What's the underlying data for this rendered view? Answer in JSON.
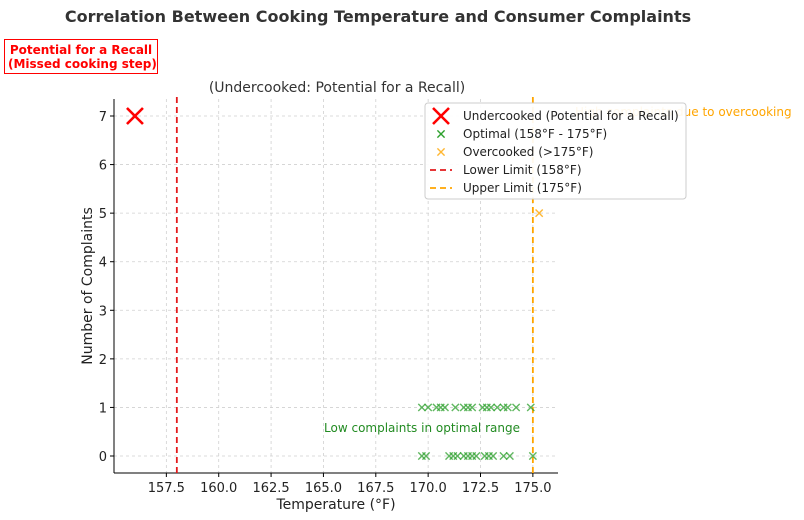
{
  "chart_data": {
    "type": "scatter",
    "title": "Correlation Between Cooking Temperature and Consumer Complaints",
    "xlabel": "Temperature (°F)",
    "ylabel": "Number of Complaints",
    "xlim": [
      155.0,
      176.2
    ],
    "ylim": [
      -0.35,
      7.35
    ],
    "xticks": [
      "157.5",
      "160.0",
      "162.5",
      "165.0",
      "167.5",
      "170.0",
      "172.5",
      "175.0"
    ],
    "yticks": [
      "0",
      "1",
      "2",
      "3",
      "4",
      "5",
      "6",
      "7"
    ],
    "grid": true,
    "legend_position": "top-right",
    "series": [
      {
        "name": "Undercooked (Potential for a Recall)",
        "color": "#ff0000",
        "marker": "x-large",
        "points": [
          [
            156.0,
            7
          ]
        ]
      },
      {
        "name": "Optimal (158°F - 175°F)",
        "color": "#2ca02c",
        "marker": "x",
        "points": [
          [
            169.7,
            1
          ],
          [
            170.0,
            1
          ],
          [
            170.4,
            1
          ],
          [
            170.6,
            1
          ],
          [
            170.8,
            1
          ],
          [
            171.3,
            1
          ],
          [
            171.7,
            1
          ],
          [
            171.9,
            1
          ],
          [
            172.1,
            1
          ],
          [
            172.6,
            1
          ],
          [
            172.8,
            1
          ],
          [
            173.0,
            1
          ],
          [
            173.3,
            1
          ],
          [
            173.6,
            1
          ],
          [
            173.8,
            1
          ],
          [
            174.2,
            1
          ],
          [
            174.9,
            1
          ],
          [
            169.7,
            0
          ],
          [
            169.9,
            0
          ],
          [
            171.0,
            0
          ],
          [
            171.2,
            0
          ],
          [
            171.4,
            0
          ],
          [
            171.7,
            0
          ],
          [
            171.9,
            0
          ],
          [
            172.1,
            0
          ],
          [
            172.3,
            0
          ],
          [
            172.7,
            0
          ],
          [
            172.9,
            0
          ],
          [
            173.1,
            0
          ],
          [
            173.6,
            0
          ],
          [
            173.9,
            0
          ],
          [
            175.0,
            0
          ]
        ]
      },
      {
        "name": "Overcooked (>175°F)",
        "color": "#ffb733",
        "marker": "x",
        "points": [
          [
            175.3,
            5
          ]
        ]
      }
    ],
    "reference_lines": [
      {
        "name": "Lower Limit (158°F)",
        "x": 158,
        "color": "#e31a1c",
        "style": "dashed"
      },
      {
        "name": "Upper Limit (175°F)",
        "x": 175,
        "color": "#ffa500",
        "style": "dashed"
      }
    ],
    "annotations": {
      "undercooked_label": "(Undercooked: Potential for a Recall)",
      "overcook_label": "High complaints due to overcooking",
      "optimal_label": "Low complaints in optimal range"
    },
    "callout": {
      "line1": "Potential for a Recall",
      "line2": "(Missed cooking step)"
    }
  }
}
